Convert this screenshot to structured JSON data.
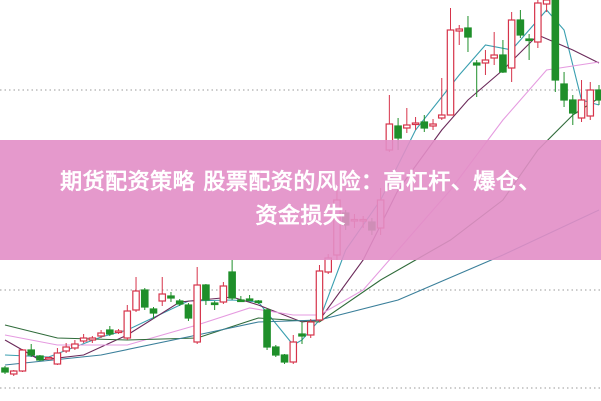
{
  "banner": {
    "line1": "期货配资策略 股票配资的风险：高杠杆、爆仓、",
    "line2": "资金损失"
  },
  "chart_data": {
    "type": "candlestick",
    "title": "",
    "xlabel": "",
    "ylabel": "",
    "grid": "dotted horizontal lines",
    "ylim": [
      0,
      401
    ],
    "colors": {
      "up": "#d6334a",
      "down": "#1f8f2a",
      "banner": "#e28ec6"
    },
    "candles": [
      {
        "o": 32,
        "c": 28,
        "h": 34,
        "l": 26
      },
      {
        "o": 26,
        "c": 29,
        "h": 30,
        "l": 24
      },
      {
        "o": 29,
        "c": 50,
        "h": 51,
        "l": 28
      },
      {
        "o": 50,
        "c": 45,
        "h": 56,
        "l": 43
      },
      {
        "o": 44,
        "c": 40,
        "h": 45,
        "l": 39
      },
      {
        "o": 42,
        "c": 42.5,
        "h": 43,
        "l": 41
      },
      {
        "o": 36,
        "c": 47,
        "h": 52,
        "l": 35
      },
      {
        "o": 49,
        "c": 53,
        "h": 57,
        "l": 47
      },
      {
        "o": 52,
        "c": 56,
        "h": 60,
        "l": 50
      },
      {
        "o": 59,
        "c": 62,
        "h": 66,
        "l": 57
      },
      {
        "o": 60,
        "c": 62,
        "h": 64,
        "l": 57
      },
      {
        "o": 64,
        "c": 67,
        "h": 70,
        "l": 62
      },
      {
        "o": 70,
        "c": 66,
        "h": 74,
        "l": 64
      },
      {
        "o": 68,
        "c": 69,
        "h": 71,
        "l": 66
      },
      {
        "o": 62,
        "c": 89,
        "h": 95,
        "l": 60
      },
      {
        "o": 90,
        "c": 109,
        "h": 123,
        "l": 88
      },
      {
        "o": 110,
        "c": 93,
        "h": 112,
        "l": 90
      },
      {
        "o": 91,
        "c": 87,
        "h": 93,
        "l": 81
      },
      {
        "o": 99,
        "c": 106,
        "h": 123,
        "l": 94
      },
      {
        "o": 104,
        "c": 102,
        "h": 108,
        "l": 98
      },
      {
        "o": 99,
        "c": 96,
        "h": 101,
        "l": 94
      },
      {
        "o": 95,
        "c": 82,
        "h": 97,
        "l": 79
      },
      {
        "o": 58,
        "c": 115,
        "h": 133,
        "l": 56
      },
      {
        "o": 115,
        "c": 100,
        "h": 116,
        "l": 95
      },
      {
        "o": 97,
        "c": 96,
        "h": 99,
        "l": 90
      },
      {
        "o": 98,
        "c": 114,
        "h": 118,
        "l": 96
      },
      {
        "o": 128,
        "c": 102,
        "h": 140,
        "l": 100
      },
      {
        "o": 100,
        "c": 99,
        "h": 104,
        "l": 98
      },
      {
        "o": 101,
        "c": 100,
        "h": 105,
        "l": 99
      },
      {
        "o": 99,
        "c": 98,
        "h": 100,
        "l": 96
      },
      {
        "o": 90,
        "c": 53,
        "h": 92,
        "l": 50
      },
      {
        "o": 53,
        "c": 45,
        "h": 55,
        "l": 43
      },
      {
        "o": 45,
        "c": 38,
        "h": 46,
        "l": 36
      },
      {
        "o": 38,
        "c": 58,
        "h": 65,
        "l": 36
      },
      {
        "o": 66,
        "c": 64,
        "h": 78,
        "l": 56
      },
      {
        "o": 65,
        "c": 78,
        "h": 81,
        "l": 62
      },
      {
        "o": 80,
        "c": 129,
        "h": 135,
        "l": 78
      },
      {
        "o": 128,
        "c": 142,
        "h": 146,
        "l": 126
      },
      {
        "o": 145,
        "c": 200,
        "h": 210,
        "l": 140
      },
      {
        "o": 187,
        "c": 175,
        "h": 190,
        "l": 170
      },
      {
        "o": 180,
        "c": 180.5,
        "h": 186,
        "l": 172
      },
      {
        "o": 180,
        "c": 180.5,
        "h": 184,
        "l": 172
      },
      {
        "o": 178,
        "c": 170,
        "h": 182,
        "l": 165
      },
      {
        "o": 172,
        "c": 200,
        "h": 212,
        "l": 165
      },
      {
        "o": 250,
        "c": 276,
        "h": 305,
        "l": 248
      },
      {
        "o": 274,
        "c": 262,
        "h": 282,
        "l": 250
      },
      {
        "o": 272,
        "c": 275,
        "h": 292,
        "l": 267
      },
      {
        "o": 276,
        "c": 277,
        "h": 283,
        "l": 270
      },
      {
        "o": 278,
        "c": 272,
        "h": 285,
        "l": 268
      },
      {
        "o": 274,
        "c": 276,
        "h": 281,
        "l": 270
      },
      {
        "o": 282,
        "c": 285,
        "h": 322,
        "l": 280
      },
      {
        "o": 285,
        "c": 370,
        "h": 392,
        "l": 285
      },
      {
        "o": 369,
        "c": 371,
        "h": 375,
        "l": 355
      },
      {
        "o": 372,
        "c": 363,
        "h": 384,
        "l": 348
      },
      {
        "o": 337,
        "c": 335,
        "h": 340,
        "l": 303
      },
      {
        "o": 337,
        "c": 340,
        "h": 350,
        "l": 325
      },
      {
        "o": 342,
        "c": 345,
        "h": 368,
        "l": 335
      },
      {
        "o": 345,
        "c": 328,
        "h": 360,
        "l": 327
      },
      {
        "o": 332,
        "c": 380,
        "h": 388,
        "l": 318
      },
      {
        "o": 380,
        "c": 365,
        "h": 390,
        "l": 362
      },
      {
        "o": 361,
        "c": 360,
        "h": 366,
        "l": 340
      },
      {
        "o": 358,
        "c": 397,
        "h": 400,
        "l": 352
      },
      {
        "o": 396,
        "c": 400,
        "h": 402,
        "l": 388
      },
      {
        "o": 400,
        "c": 320,
        "h": 402,
        "l": 308
      },
      {
        "o": 316,
        "c": 300,
        "h": 328,
        "l": 293
      },
      {
        "o": 300,
        "c": 287,
        "h": 305,
        "l": 275
      },
      {
        "o": 282,
        "c": 300,
        "h": 320,
        "l": 278
      },
      {
        "o": 284,
        "c": 310,
        "h": 318,
        "l": 280
      },
      {
        "o": 310,
        "c": 300,
        "h": 315,
        "l": 295
      }
    ],
    "gridlines": [
      310,
      110,
      12
    ],
    "moving_averages": [
      {
        "color": "#3a9fb0",
        "points": [
          [
            0,
            45
          ],
          [
            5,
            43
          ],
          [
            11,
            63
          ],
          [
            14,
            70
          ],
          [
            21,
            99
          ],
          [
            26,
            100
          ],
          [
            29,
            98
          ],
          [
            33,
            55
          ],
          [
            34,
            60
          ],
          [
            36,
            80
          ],
          [
            39,
            150
          ],
          [
            43,
            200
          ],
          [
            47,
            270
          ],
          [
            52,
            325
          ],
          [
            55,
            355
          ],
          [
            58,
            350
          ],
          [
            62,
            390
          ],
          [
            64,
            370
          ],
          [
            66,
            300
          ],
          [
            68,
            295
          ]
        ]
      },
      {
        "color": "#6b2a5a",
        "points": [
          [
            0,
            60
          ],
          [
            4,
            40
          ],
          [
            9,
            45
          ],
          [
            14,
            65
          ],
          [
            20,
            98
          ],
          [
            26,
            103
          ],
          [
            29,
            95
          ],
          [
            34,
            78
          ],
          [
            36,
            80
          ],
          [
            41,
            140
          ],
          [
            45,
            210
          ],
          [
            50,
            270
          ],
          [
            53,
            300
          ],
          [
            57,
            330
          ],
          [
            61,
            365
          ],
          [
            65,
            350
          ],
          [
            68,
            337
          ]
        ]
      },
      {
        "color": "#e59be0",
        "points": [
          [
            0,
            65
          ],
          [
            6,
            55
          ],
          [
            14,
            55
          ],
          [
            22,
            75
          ],
          [
            28,
            92
          ],
          [
            33,
            85
          ],
          [
            36,
            85
          ],
          [
            41,
            110
          ],
          [
            45,
            150
          ],
          [
            51,
            210
          ],
          [
            57,
            280
          ],
          [
            62,
            330
          ],
          [
            68,
            338
          ]
        ]
      },
      {
        "color": "#2f6b3a",
        "points": [
          [
            0,
            75
          ],
          [
            6,
            62
          ],
          [
            14,
            60
          ],
          [
            22,
            62
          ],
          [
            29,
            82
          ],
          [
            36,
            78
          ],
          [
            43,
            120
          ],
          [
            47,
            140
          ],
          [
            51,
            160
          ],
          [
            57,
            200
          ],
          [
            61,
            250
          ],
          [
            65,
            285
          ],
          [
            68,
            302
          ]
        ]
      },
      {
        "color": "#3a7f9a",
        "points": [
          [
            0,
            35
          ],
          [
            11,
            45
          ],
          [
            22,
            65
          ],
          [
            29,
            78
          ],
          [
            36,
            80
          ],
          [
            45,
            100
          ],
          [
            57,
            145
          ],
          [
            68,
            190
          ]
        ]
      }
    ]
  }
}
